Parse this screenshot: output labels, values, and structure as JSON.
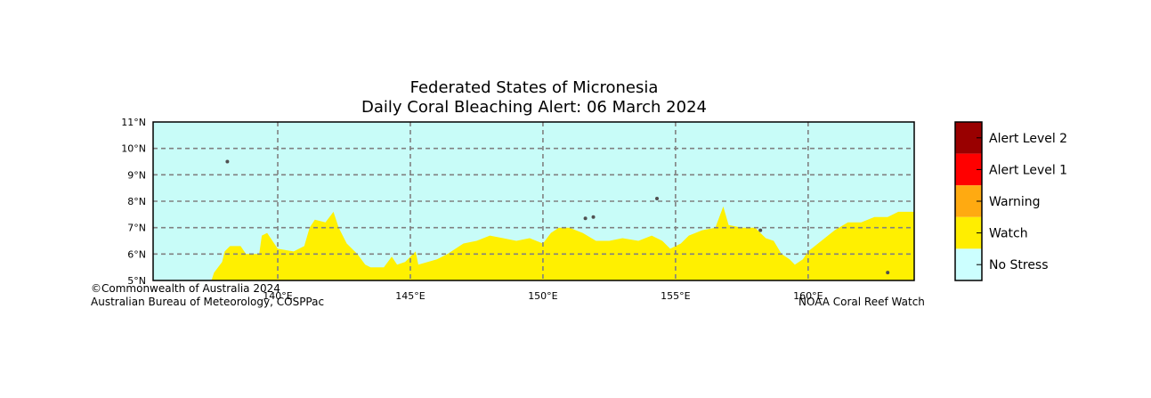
{
  "title": {
    "line1": "Federated States of Micronesia",
    "line2": "Daily Coral Bleaching Alert: 06 March 2024"
  },
  "credits": {
    "left_line1": "©Commonwealth of Australia 2024",
    "left_line2": "Australian Bureau of Meteorology, COSPPac",
    "right": "NOAA Coral Reef Watch"
  },
  "map": {
    "lon_range": [
      135.3,
      164.0
    ],
    "lat_range": [
      5,
      11
    ],
    "grid": true,
    "lon_ticks": [
      {
        "value": 140,
        "label": "140°E"
      },
      {
        "value": 145,
        "label": "145°E"
      },
      {
        "value": 150,
        "label": "150°E"
      },
      {
        "value": 155,
        "label": "155°E"
      },
      {
        "value": 160,
        "label": "160°E"
      }
    ],
    "lat_ticks": [
      {
        "value": 5,
        "label": "5°N"
      },
      {
        "value": 6,
        "label": "6°N"
      },
      {
        "value": 7,
        "label": "7°N"
      },
      {
        "value": 8,
        "label": "8°N"
      },
      {
        "value": 9,
        "label": "9°N"
      },
      {
        "value": 10,
        "label": "10°N"
      },
      {
        "value": 11,
        "label": "11°N"
      }
    ],
    "background_level": "No Stress",
    "watch_region_boundary": [
      [
        137.5,
        5.0
      ],
      [
        137.6,
        5.3
      ],
      [
        137.9,
        5.7
      ],
      [
        138.0,
        6.1
      ],
      [
        138.2,
        6.3
      ],
      [
        138.6,
        6.3
      ],
      [
        138.8,
        6.0
      ],
      [
        139.3,
        6.0
      ],
      [
        139.4,
        6.7
      ],
      [
        139.6,
        6.8
      ],
      [
        140.0,
        6.2
      ],
      [
        140.6,
        6.1
      ],
      [
        141.0,
        6.3
      ],
      [
        141.2,
        7.0
      ],
      [
        141.4,
        7.3
      ],
      [
        141.8,
        7.2
      ],
      [
        142.1,
        7.6
      ],
      [
        142.3,
        7.0
      ],
      [
        142.6,
        6.4
      ],
      [
        143.0,
        6.0
      ],
      [
        143.3,
        5.6
      ],
      [
        143.5,
        5.5
      ],
      [
        144.0,
        5.5
      ],
      [
        144.3,
        5.9
      ],
      [
        144.5,
        5.6
      ],
      [
        144.8,
        5.7
      ],
      [
        145.2,
        6.1
      ],
      [
        145.3,
        5.6
      ],
      [
        146.0,
        5.8
      ],
      [
        146.4,
        6.0
      ],
      [
        147.0,
        6.4
      ],
      [
        147.5,
        6.5
      ],
      [
        148.0,
        6.7
      ],
      [
        148.5,
        6.6
      ],
      [
        149.0,
        6.5
      ],
      [
        149.5,
        6.6
      ],
      [
        150.0,
        6.4
      ],
      [
        150.3,
        6.8
      ],
      [
        150.6,
        7.0
      ],
      [
        151.0,
        7.0
      ],
      [
        151.5,
        6.8
      ],
      [
        152.0,
        6.5
      ],
      [
        152.5,
        6.5
      ],
      [
        153.0,
        6.6
      ],
      [
        153.6,
        6.5
      ],
      [
        154.1,
        6.7
      ],
      [
        154.5,
        6.5
      ],
      [
        154.8,
        6.2
      ],
      [
        155.2,
        6.4
      ],
      [
        155.5,
        6.7
      ],
      [
        156.0,
        6.9
      ],
      [
        156.5,
        7.0
      ],
      [
        156.8,
        7.8
      ],
      [
        157.0,
        7.1
      ],
      [
        157.5,
        7.0
      ],
      [
        158.0,
        7.0
      ],
      [
        158.4,
        6.6
      ],
      [
        158.7,
        6.5
      ],
      [
        159.0,
        6.0
      ],
      [
        159.3,
        5.8
      ],
      [
        159.5,
        5.6
      ],
      [
        159.8,
        5.8
      ],
      [
        160.0,
        6.1
      ],
      [
        160.5,
        6.5
      ],
      [
        161.0,
        6.9
      ],
      [
        161.5,
        7.2
      ],
      [
        162.0,
        7.2
      ],
      [
        162.5,
        7.4
      ],
      [
        163.0,
        7.4
      ],
      [
        163.4,
        7.6
      ],
      [
        164.0,
        7.6
      ],
      [
        164.0,
        5.0
      ]
    ],
    "land_points": [
      {
        "lon": 138.1,
        "lat": 9.5
      },
      {
        "lon": 151.6,
        "lat": 7.35
      },
      {
        "lon": 151.9,
        "lat": 7.4
      },
      {
        "lon": 154.3,
        "lat": 8.1
      },
      {
        "lon": 158.2,
        "lat": 6.9
      },
      {
        "lon": 163.0,
        "lat": 5.3
      }
    ]
  },
  "legend": {
    "items": [
      {
        "label": "Alert Level 2",
        "color": "#990000"
      },
      {
        "label": "Alert Level 1",
        "color": "#ff0000"
      },
      {
        "label": "Warning",
        "color": "#ffaa11"
      },
      {
        "label": "Watch",
        "color": "#ffee00"
      },
      {
        "label": "No Stress",
        "color": "#ccffff"
      }
    ]
  },
  "colors": {
    "no_stress_water": "#c8fcf8",
    "watch": "#fff000",
    "gridline": "#808080",
    "land": "#505050"
  }
}
